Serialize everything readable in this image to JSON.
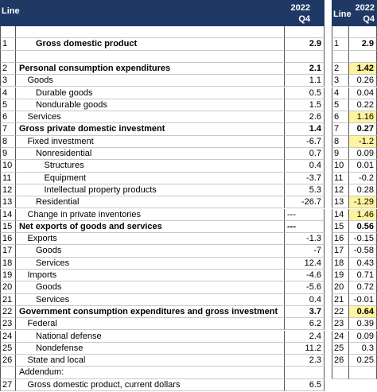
{
  "table": {
    "header": {
      "line": "Line",
      "year": "2022",
      "quarter": "Q4"
    },
    "rows": [
      {
        "line": 1,
        "label": "Gross domestic product",
        "value": 2.9,
        "level": 2,
        "bold": true
      },
      {
        "line": 2,
        "label": "Personal consumption expenditures",
        "value": 2.1,
        "level": 0,
        "bold": true
      },
      {
        "line": 3,
        "label": "Goods",
        "value": 1.1,
        "level": 1
      },
      {
        "line": 4,
        "label": "Durable goods",
        "value": 0.5,
        "level": 2
      },
      {
        "line": 5,
        "label": "Nondurable goods",
        "value": 1.5,
        "level": 2
      },
      {
        "line": 6,
        "label": "Services",
        "value": 2.6,
        "level": 1
      },
      {
        "line": 7,
        "label": "Gross private domestic investment",
        "value": 1.4,
        "level": 0,
        "bold": true
      },
      {
        "line": 8,
        "label": "Fixed investment",
        "value": -6.7,
        "level": 1
      },
      {
        "line": 9,
        "label": "Nonresidential",
        "value": 0.7,
        "level": 2
      },
      {
        "line": 10,
        "label": "Structures",
        "value": 0.4,
        "level": 3
      },
      {
        "line": 11,
        "label": "Equipment",
        "value": -3.7,
        "level": 3
      },
      {
        "line": 12,
        "label": "Intellectual property products",
        "value": 5.3,
        "level": 3
      },
      {
        "line": 13,
        "label": "Residential",
        "value": -26.7,
        "level": 2
      },
      {
        "line": 14,
        "label": "Change in private inventories",
        "value": "---",
        "level": 1
      },
      {
        "line": 15,
        "label": "Net exports of goods and services",
        "value": "---",
        "level": 0,
        "bold": true
      },
      {
        "line": 16,
        "label": "Exports",
        "value": -1.3,
        "level": 1
      },
      {
        "line": 17,
        "label": "Goods",
        "value": -7,
        "level": 2
      },
      {
        "line": 18,
        "label": "Services",
        "value": 12.4,
        "level": 2
      },
      {
        "line": 19,
        "label": "Imports",
        "value": -4.6,
        "level": 1
      },
      {
        "line": 20,
        "label": "Goods",
        "value": -5.6,
        "level": 2
      },
      {
        "line": 21,
        "label": "Services",
        "value": 0.4,
        "level": 2
      },
      {
        "line": 22,
        "label": "Government consumption expenditures and gross investment",
        "value": 3.7,
        "level": 0,
        "bold": true
      },
      {
        "line": 23,
        "label": "Federal",
        "value": 6.2,
        "level": 1
      },
      {
        "line": 24,
        "label": "National defense",
        "value": 2.4,
        "level": 2
      },
      {
        "line": 25,
        "label": "Nondefense",
        "value": 11.2,
        "level": 2
      },
      {
        "line": 26,
        "label": "State and local",
        "value": 2.3,
        "level": 1
      },
      {
        "label": "Addendum:",
        "level": 0
      },
      {
        "line": 27,
        "label": "Gross domestic product, current dollars",
        "value": 6.5,
        "level": 1
      }
    ]
  },
  "contributions": {
    "header": {
      "line": "Line",
      "year": "2022",
      "quarter": "Q4"
    },
    "rows": [
      {
        "line": 1,
        "value": 2.9,
        "bold": true
      },
      {
        "line": 2,
        "value": 1.42,
        "bold": true,
        "highlight": true
      },
      {
        "line": 3,
        "value": 0.26
      },
      {
        "line": 4,
        "value": 0.04
      },
      {
        "line": 5,
        "value": 0.22
      },
      {
        "line": 6,
        "value": 1.16,
        "highlight": true
      },
      {
        "line": 7,
        "value": 0.27,
        "bold": true
      },
      {
        "line": 8,
        "value": -1.2,
        "highlight": true
      },
      {
        "line": 9,
        "value": 0.09
      },
      {
        "line": 10,
        "value": 0.01
      },
      {
        "line": 11,
        "value": -0.2
      },
      {
        "line": 12,
        "value": 0.28
      },
      {
        "line": 13,
        "value": -1.29,
        "highlight": true
      },
      {
        "line": 14,
        "value": 1.46,
        "highlight": true
      },
      {
        "line": 15,
        "value": 0.56,
        "bold": true
      },
      {
        "line": 16,
        "value": -0.15
      },
      {
        "line": 17,
        "value": -0.58
      },
      {
        "line": 18,
        "value": 0.43
      },
      {
        "line": 19,
        "value": 0.71
      },
      {
        "line": 20,
        "value": 0.72
      },
      {
        "line": 21,
        "value": -0.01
      },
      {
        "line": 22,
        "value": 0.64,
        "bold": true,
        "highlight": true
      },
      {
        "line": 23,
        "value": 0.39
      },
      {
        "line": 24,
        "value": 0.09
      },
      {
        "line": 25,
        "value": 0.3
      },
      {
        "line": 26,
        "value": 0.25
      }
    ]
  }
}
